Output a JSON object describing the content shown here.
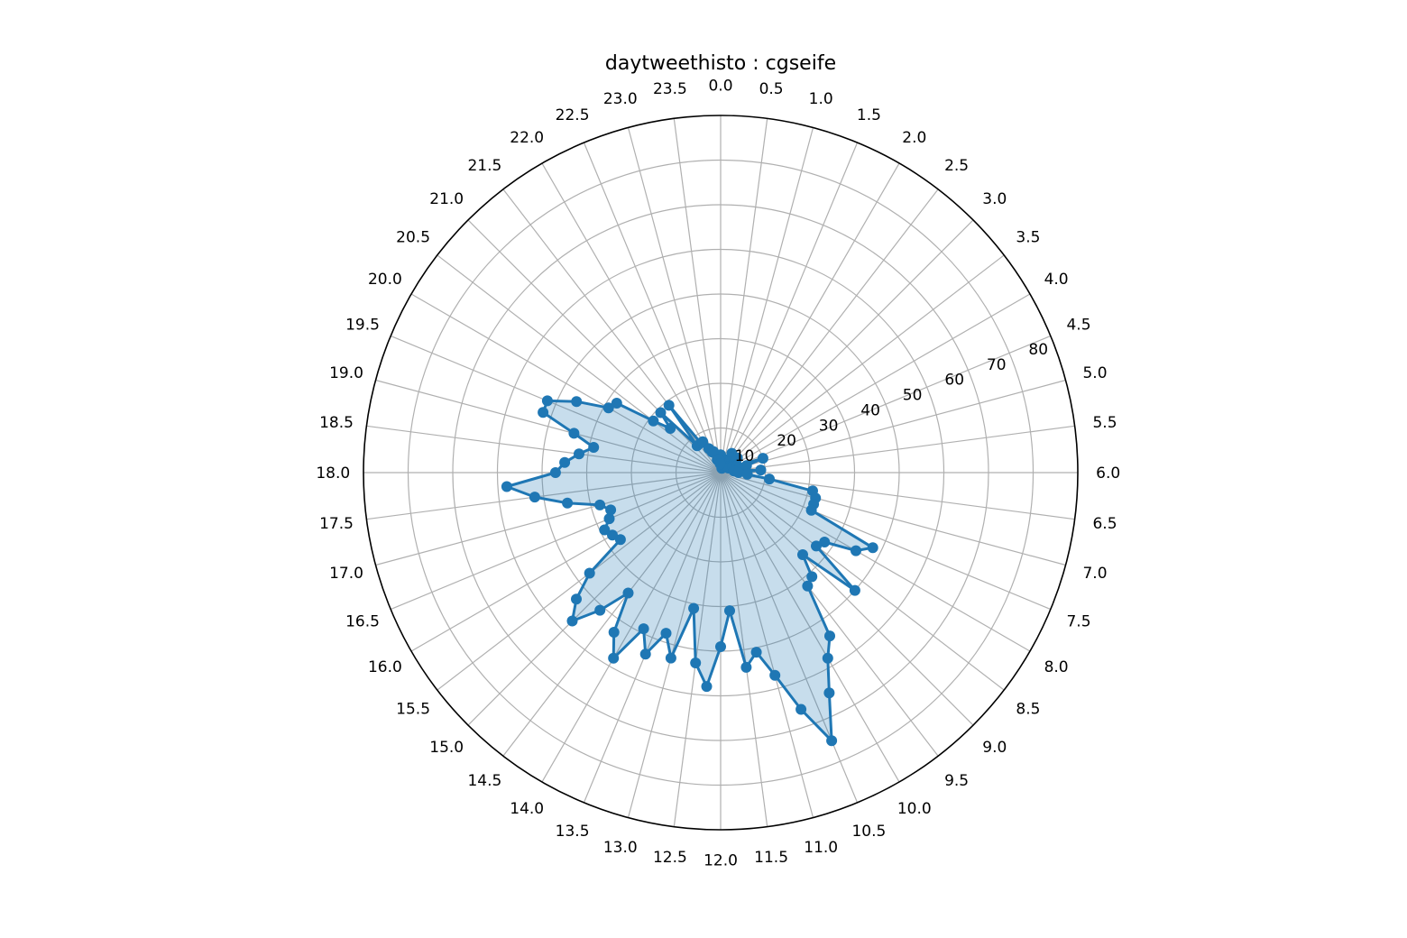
{
  "chart_data": {
    "type": "polar-line",
    "title": "daytweethisto : cgseife",
    "theta_unit": "hour of day",
    "theta_range": [
      0,
      24
    ],
    "theta_direction": "clockwise",
    "theta_zero": "top",
    "theta_ticks": [
      "0.0",
      "0.5",
      "1.0",
      "1.5",
      "2.0",
      "2.5",
      "3.0",
      "3.5",
      "4.0",
      "4.5",
      "5.0",
      "5.5",
      "6.0",
      "6.5",
      "7.0",
      "7.5",
      "8.0",
      "8.5",
      "9.0",
      "9.5",
      "10.0",
      "10.5",
      "11.0",
      "11.5",
      "12.0",
      "12.5",
      "13.0",
      "13.5",
      "14.0",
      "14.5",
      "15.0",
      "15.5",
      "16.0",
      "16.5",
      "17.0",
      "17.5",
      "18.0",
      "18.5",
      "19.0",
      "19.5",
      "20.0",
      "20.5",
      "21.0",
      "21.5",
      "22.0",
      "22.5",
      "23.0",
      "23.5"
    ],
    "r_ticks": [
      "10",
      "20",
      "30",
      "40",
      "50",
      "60",
      "70",
      "80"
    ],
    "r_tick_values": [
      10,
      20,
      30,
      40,
      50,
      60,
      70,
      80
    ],
    "r_tick_angle_hour": 4.67,
    "rlim": [
      0,
      80
    ],
    "grid": true,
    "fill": true,
    "series": [
      {
        "color": "#1f77b4",
        "x": [
          0.0,
          0.25,
          0.5,
          0.75,
          1.0,
          1.25,
          1.5,
          1.75,
          2.0,
          2.25,
          2.5,
          2.75,
          3.0,
          3.25,
          3.5,
          3.75,
          4.0,
          4.25,
          4.5,
          4.75,
          5.0,
          5.25,
          5.5,
          5.75,
          6.0,
          6.25,
          6.5,
          6.75,
          7.0,
          7.25,
          7.5,
          7.75,
          8.0,
          8.25,
          8.5,
          8.75,
          9.0,
          9.25,
          9.5,
          9.75,
          10.0,
          10.25,
          10.5,
          10.75,
          11.0,
          11.25,
          11.5,
          11.75,
          12.0,
          12.25,
          12.5,
          12.75,
          13.0,
          13.25,
          13.5,
          13.75,
          14.0,
          14.25,
          14.5,
          14.75,
          15.0,
          15.25,
          15.5,
          15.75,
          16.0,
          16.25,
          16.5,
          16.75,
          17.0,
          17.25,
          17.5,
          17.75,
          18.0,
          18.25,
          18.5,
          18.75,
          19.0,
          19.25,
          19.5,
          19.75,
          20.0,
          20.25,
          20.5,
          20.75,
          21.0,
          21.25,
          21.5,
          21.75,
          22.0,
          22.25,
          22.5,
          22.75,
          23.0,
          23.25,
          23.5,
          23.75
        ],
        "values": [
          4,
          2,
          2,
          2,
          1,
          3,
          2,
          3,
          5,
          4,
          3,
          3,
          2,
          5,
          4,
          2,
          2,
          3,
          4,
          10,
          6,
          4,
          3,
          9,
          4,
          6,
          11,
          21,
          22,
          22,
          22,
          38,
          35,
          28,
          27,
          40,
          26,
          31,
          32,
          44,
          48,
          55,
          65,
          56,
          47,
          41,
          44,
          31,
          39,
          48,
          43,
          31,
          43,
          38,
          44,
          39,
          48,
          43,
          34,
          41,
          47,
          43,
          37,
          27,
          28,
          29,
          27,
          26,
          28,
          35,
          42,
          48,
          37,
          35,
          32,
          29,
          34,
          42,
          42,
          36,
          29,
          28,
          19,
          15,
          19,
          8,
          19,
          8,
          8,
          6,
          5,
          5,
          3,
          3,
          3,
          2
        ]
      }
    ]
  }
}
